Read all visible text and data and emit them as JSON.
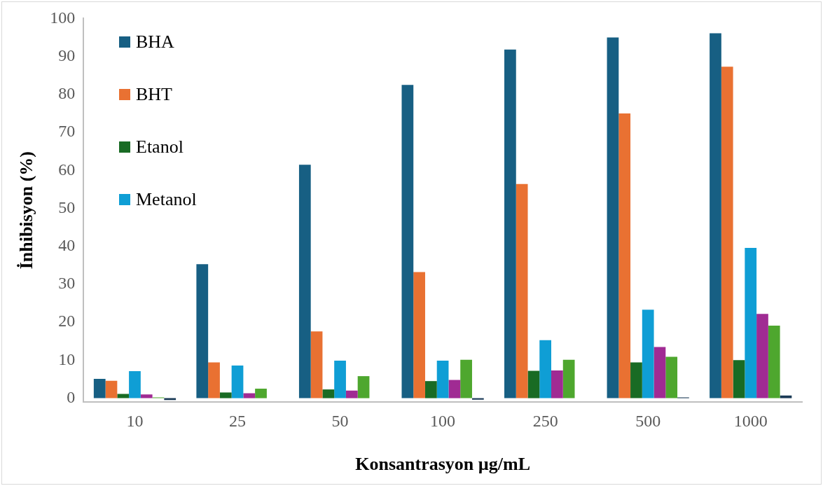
{
  "chart_data": {
    "type": "bar",
    "xlabel": "Konsantrasyon µg/mL",
    "ylabel": "İnhibisyon (%)",
    "categories": [
      "10",
      "25",
      "50",
      "100",
      "250",
      "500",
      "1000"
    ],
    "series": [
      {
        "name": "BHA",
        "color": "#175f83",
        "values": [
          5.1,
          35.3,
          61.5,
          82.5,
          91.8,
          95.0,
          96.1
        ]
      },
      {
        "name": "BHT",
        "color": "#e97132",
        "values": [
          4.6,
          9.4,
          17.6,
          33.2,
          56.4,
          75.0,
          87.3
        ]
      },
      {
        "name": "Etanol",
        "color": "#196b24",
        "values": [
          1.1,
          1.5,
          2.3,
          4.5,
          7.2,
          9.4,
          10.0
        ]
      },
      {
        "name": "Metanol",
        "color": "#0f9ed5",
        "values": [
          7.1,
          8.6,
          9.9,
          9.9,
          15.3,
          23.3,
          39.6
        ]
      },
      {
        "color": "#a02b93",
        "values": [
          1.0,
          1.3,
          2.0,
          4.8,
          7.3,
          13.5,
          22.2
        ]
      },
      {
        "color": "#4ea72e",
        "values": [
          0.2,
          2.5,
          5.8,
          10.1,
          10.1,
          10.9,
          19.1
        ]
      },
      {
        "color": "#1a3a56",
        "values": [
          -0.5,
          0,
          0,
          -0.4,
          0,
          0.2,
          0.7
        ]
      }
    ],
    "ylim": [
      -1,
      100
    ],
    "yticks": [
      0,
      10,
      20,
      30,
      40,
      50,
      60,
      70,
      80,
      90,
      100
    ],
    "grid": false,
    "legend": "top left"
  }
}
